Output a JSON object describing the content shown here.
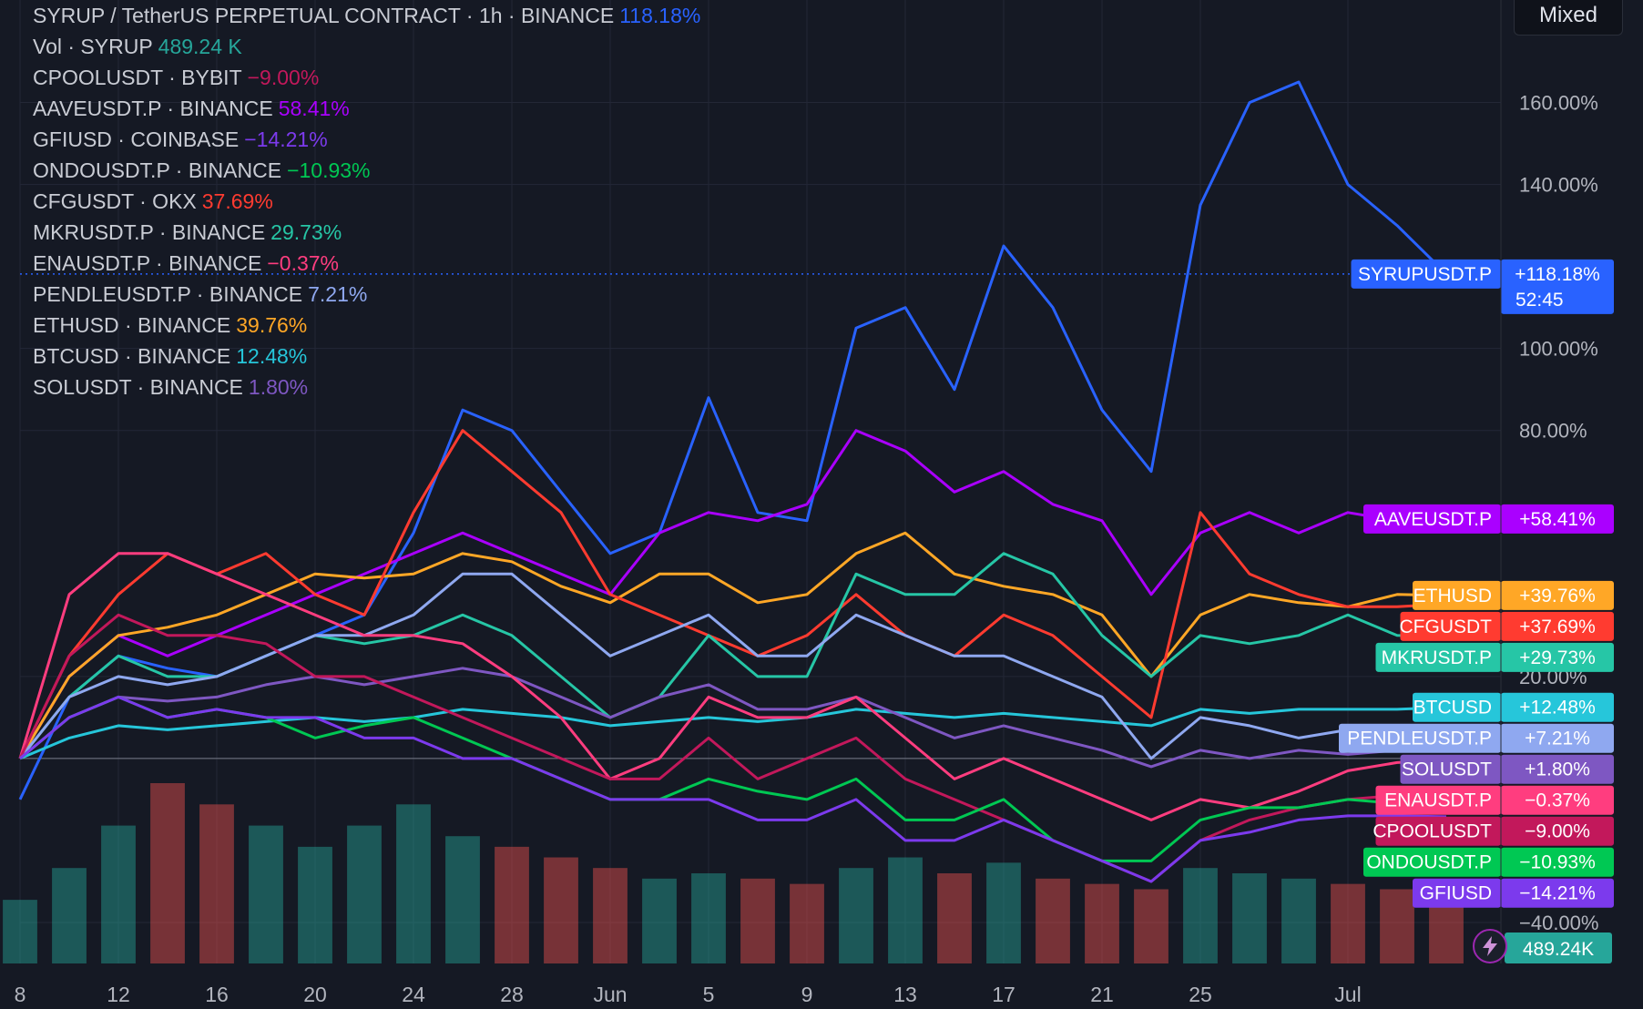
{
  "header": {
    "scale_mode": "Mixed"
  },
  "legend": [
    {
      "name": "SYRUP / TetherUS PERPETUAL CONTRACT · 1h · BINANCE",
      "change": "118.18%",
      "color": "#2962ff"
    },
    {
      "name": "Vol · SYRUP",
      "change": "489.24 K",
      "color": "#26a69a"
    },
    {
      "name": "CPOOLUSDT · BYBIT",
      "change": "−9.00%",
      "color": "#c2185b"
    },
    {
      "name": "AAVEUSDT.P · BINANCE",
      "change": "58.41%",
      "color": "#aa00ff"
    },
    {
      "name": "GFIUSD · COINBASE",
      "change": "−14.21%",
      "color": "#7c3aed"
    },
    {
      "name": "ONDOUSDT.P · BINANCE",
      "change": "−10.93%",
      "color": "#00c853"
    },
    {
      "name": "CFGUSDT · OKX",
      "change": "37.69%",
      "color": "#ff3b30"
    },
    {
      "name": "MKRUSDT.P · BINANCE",
      "change": "29.73%",
      "color": "#26c6a6"
    },
    {
      "name": "ENAUSDT.P · BINANCE",
      "change": "−0.37%",
      "color": "#ff3d7f"
    },
    {
      "name": "PENDLEUSDT.P · BINANCE",
      "change": "7.21%",
      "color": "#8fa8f0"
    },
    {
      "name": "ETHUSD · BINANCE",
      "change": "39.76%",
      "color": "#ffa726"
    },
    {
      "name": "BTCUSD · BINANCE",
      "change": "12.48%",
      "color": "#26c6da"
    },
    {
      "name": "SOLUSDT · BINANCE",
      "change": "1.80%",
      "color": "#7e57c2"
    }
  ],
  "chart_data": {
    "type": "line",
    "y_unit": "%",
    "ylim": [
      -50,
      185
    ],
    "y_ticks": [
      "160.00%",
      "140.00%",
      "100.00%",
      "80.00%",
      "20.00%",
      "−40.00%"
    ],
    "x_tick_labels": [
      "8",
      "12",
      "16",
      "20",
      "24",
      "28",
      "Jun",
      "5",
      "9",
      "13",
      "17",
      "21",
      "25",
      "Jul"
    ],
    "x": [
      "8",
      "10",
      "12",
      "14",
      "16",
      "18",
      "20",
      "22",
      "24",
      "26",
      "28",
      "30",
      "Jun",
      "3",
      "5",
      "7",
      "9",
      "11",
      "13",
      "15",
      "17",
      "19",
      "21",
      "23",
      "25",
      "27",
      "29",
      "Jul",
      "3",
      "5"
    ],
    "grid": true,
    "legend_position": "top-left",
    "series": [
      {
        "name": "SYRUPUSDT.P",
        "label": "+118.18%",
        "timer": "52:45",
        "color": "#2962ff",
        "values": [
          -10,
          15,
          25,
          22,
          20,
          25,
          30,
          35,
          55,
          85,
          80,
          65,
          50,
          55,
          88,
          60,
          58,
          105,
          110,
          90,
          125,
          110,
          85,
          70,
          135,
          160,
          165,
          140,
          130,
          118.18
        ]
      },
      {
        "name": "AAVEUSDT.P",
        "label": "+58.41%",
        "color": "#aa00ff",
        "values": [
          0,
          20,
          30,
          25,
          30,
          35,
          40,
          45,
          50,
          55,
          50,
          45,
          40,
          55,
          60,
          58,
          62,
          80,
          75,
          65,
          70,
          62,
          58,
          40,
          55,
          60,
          55,
          60,
          58,
          58.41
        ]
      },
      {
        "name": "ETHUSD",
        "label": "+39.76%",
        "color": "#ffa726",
        "values": [
          0,
          20,
          30,
          32,
          35,
          40,
          45,
          44,
          45,
          50,
          48,
          42,
          38,
          45,
          45,
          38,
          40,
          50,
          55,
          45,
          42,
          40,
          35,
          20,
          35,
          40,
          38,
          37,
          40,
          39.76
        ]
      },
      {
        "name": "CFGUSDT",
        "label": "+37.69%",
        "color": "#ff3b30",
        "values": [
          0,
          25,
          40,
          50,
          45,
          50,
          40,
          35,
          60,
          80,
          70,
          60,
          40,
          35,
          30,
          25,
          30,
          40,
          30,
          25,
          35,
          30,
          20,
          10,
          60,
          45,
          40,
          37,
          37,
          37.69
        ]
      },
      {
        "name": "MKRUSDT.P",
        "label": "+29.73%",
        "color": "#26c6a6",
        "values": [
          0,
          15,
          25,
          20,
          20,
          25,
          30,
          28,
          30,
          35,
          30,
          20,
          10,
          15,
          30,
          20,
          20,
          45,
          40,
          40,
          50,
          45,
          30,
          20,
          30,
          28,
          30,
          35,
          30,
          29.73
        ]
      },
      {
        "name": "BTCUSD",
        "label": "+12.48%",
        "color": "#26c6da",
        "values": [
          0,
          5,
          8,
          7,
          8,
          9,
          10,
          9,
          10,
          12,
          11,
          10,
          8,
          9,
          10,
          9,
          10,
          12,
          11,
          10,
          11,
          10,
          9,
          8,
          12,
          11,
          12,
          12,
          12,
          12.48
        ]
      },
      {
        "name": "PENDLEUSDT.P",
        "label": "+7.21%",
        "color": "#8fa8f0",
        "values": [
          0,
          15,
          20,
          18,
          20,
          25,
          30,
          30,
          35,
          45,
          45,
          35,
          25,
          30,
          35,
          25,
          25,
          35,
          30,
          25,
          25,
          20,
          15,
          0,
          10,
          8,
          5,
          7,
          7,
          7.21
        ]
      },
      {
        "name": "SOLUSDT",
        "label": "+1.80%",
        "color": "#7e57c2",
        "values": [
          0,
          10,
          15,
          14,
          15,
          18,
          20,
          18,
          20,
          22,
          20,
          15,
          10,
          15,
          18,
          12,
          12,
          15,
          10,
          5,
          8,
          5,
          2,
          -2,
          2,
          0,
          2,
          1,
          2,
          1.8
        ]
      },
      {
        "name": "ENAUSDT.P",
        "label": "−0.37%",
        "color": "#ff3d7f",
        "values": [
          0,
          40,
          50,
          50,
          45,
          40,
          35,
          30,
          30,
          28,
          20,
          10,
          -5,
          0,
          15,
          10,
          10,
          15,
          5,
          -5,
          0,
          -5,
          -10,
          -15,
          -10,
          -12,
          -8,
          -3,
          -1,
          -0.37
        ]
      },
      {
        "name": "CPOOLUSDT",
        "label": "−9.00%",
        "color": "#c2185b",
        "values": [
          0,
          25,
          35,
          30,
          30,
          28,
          20,
          20,
          15,
          10,
          5,
          0,
          -5,
          -5,
          5,
          -5,
          0,
          5,
          -5,
          -10,
          -15,
          -20,
          -25,
          -30,
          -20,
          -15,
          -12,
          -10,
          -9,
          -9.0
        ]
      },
      {
        "name": "ONDOUSDT.P",
        "label": "−10.93%",
        "color": "#00c853",
        "values": [
          0,
          10,
          15,
          10,
          12,
          10,
          5,
          8,
          10,
          5,
          0,
          -5,
          -10,
          -10,
          -5,
          -8,
          -10,
          -5,
          -15,
          -15,
          -10,
          -20,
          -25,
          -25,
          -15,
          -12,
          -12,
          -10,
          -11,
          -10.93
        ]
      },
      {
        "name": "GFIUSD",
        "label": "−14.21%",
        "color": "#7c3aed",
        "values": [
          0,
          10,
          15,
          10,
          12,
          10,
          10,
          5,
          5,
          0,
          0,
          -5,
          -10,
          -10,
          -10,
          -15,
          -15,
          -10,
          -20,
          -20,
          -15,
          -20,
          -25,
          -30,
          -20,
          -18,
          -15,
          -14,
          -14,
          -14.21
        ]
      }
    ],
    "volume": {
      "name": "Vol · SYRUP",
      "label": "489.24K",
      "color": "#26a69a",
      "down_color": "#ef5350",
      "values": [
        120,
        180,
        260,
        340,
        300,
        260,
        220,
        260,
        300,
        240,
        220,
        200,
        180,
        160,
        170,
        160,
        150,
        180,
        200,
        170,
        190,
        160,
        150,
        140,
        180,
        170,
        160,
        150,
        140,
        130
      ]
    }
  }
}
